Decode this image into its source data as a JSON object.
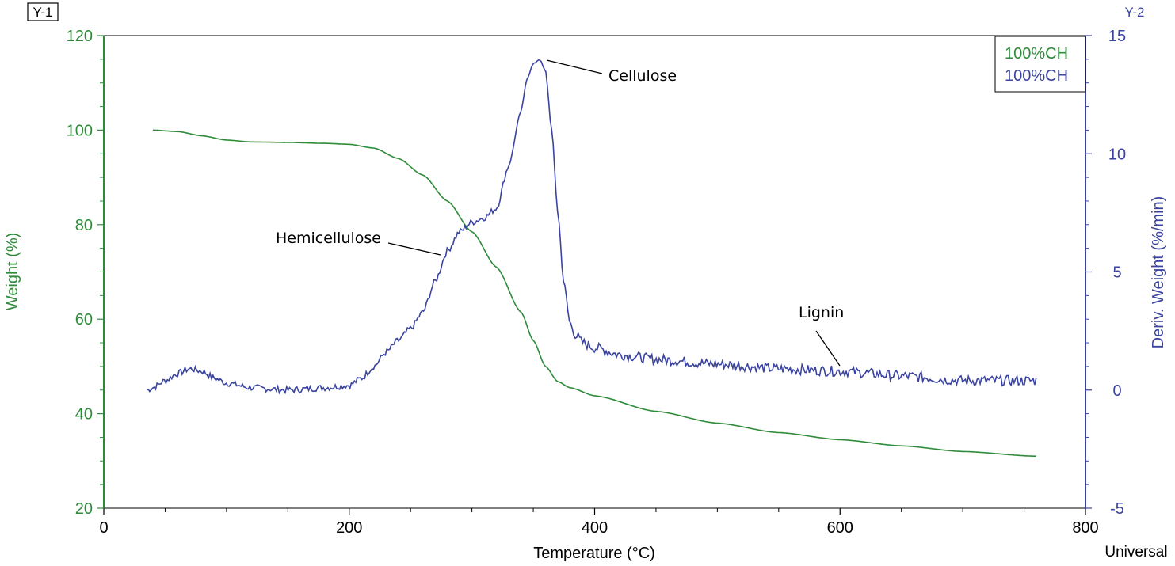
{
  "chart_data": {
    "type": "line",
    "corner_label_left": "Y-1",
    "corner_label_right": "Y-2",
    "xlabel": "Temperature (°C)",
    "ylabel_left": "Weight (%)",
    "ylabel_right": "Deriv. Weight (%/min)",
    "footer_label": "Universal",
    "xlim": [
      0,
      800
    ],
    "ylim_left": [
      20,
      120
    ],
    "ylim_right": [
      -5,
      15
    ],
    "x_ticks": [
      "0",
      "200",
      "400",
      "600",
      "800"
    ],
    "y_left_ticks": [
      "20",
      "40",
      "60",
      "80",
      "100",
      "120"
    ],
    "y_right_ticks": [
      "-5",
      "0",
      "5",
      "10",
      "15"
    ],
    "colors": {
      "weight": "#2e8b3a",
      "deriv": "#3a44a0"
    },
    "legend": [
      "100%CH",
      "100%CH"
    ],
    "annotations": {
      "cellulose": "Cellulose",
      "hemicellulose": "Hemicellulose",
      "lignin": "Lignin"
    },
    "series": [
      {
        "name": "100%CH",
        "axis": "left",
        "x": [
          40,
          60,
          80,
          100,
          120,
          150,
          180,
          200,
          220,
          240,
          260,
          280,
          300,
          320,
          340,
          350,
          360,
          370,
          380,
          400,
          450,
          500,
          550,
          600,
          650,
          700,
          760
        ],
        "y": [
          100,
          99.7,
          98.8,
          97.9,
          97.5,
          97.4,
          97.2,
          97.0,
          96.2,
          94.0,
          90.5,
          85.0,
          78.5,
          71.0,
          61.5,
          55.5,
          50.0,
          46.8,
          45.5,
          43.8,
          40.5,
          38.0,
          36.0,
          34.5,
          33.2,
          32.0,
          31.0
        ]
      },
      {
        "name": "100%CH",
        "axis": "right",
        "x": [
          35,
          40,
          50,
          60,
          70,
          80,
          90,
          100,
          120,
          150,
          180,
          200,
          210,
          220,
          230,
          240,
          250,
          260,
          270,
          280,
          290,
          300,
          310,
          320,
          330,
          340,
          345,
          350,
          355,
          360,
          365,
          370,
          375,
          380,
          385,
          390,
          400,
          420,
          450,
          500,
          550,
          600,
          650,
          700,
          760
        ],
        "y": [
          0.0,
          0.1,
          0.4,
          0.7,
          0.9,
          0.8,
          0.5,
          0.3,
          0.1,
          0.0,
          0.1,
          0.2,
          0.5,
          1.0,
          1.6,
          2.1,
          2.6,
          3.3,
          4.6,
          5.9,
          6.7,
          7.1,
          7.3,
          7.7,
          9.5,
          11.8,
          13.2,
          13.8,
          14.0,
          13.5,
          11.0,
          7.5,
          4.5,
          2.8,
          2.3,
          2.0,
          1.8,
          1.5,
          1.3,
          1.1,
          0.9,
          0.8,
          0.6,
          0.4,
          0.4
        ]
      }
    ]
  }
}
